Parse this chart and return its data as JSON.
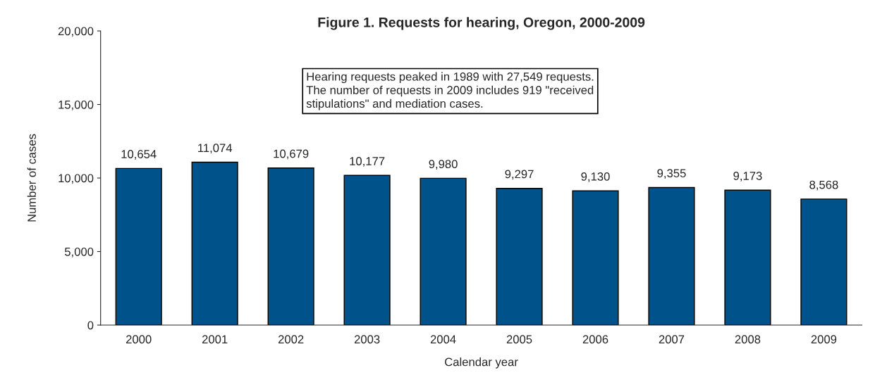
{
  "chart_data": {
    "type": "bar",
    "title": "Figure 1. Requests for hearing, Oregon, 2000-2009",
    "xlabel": "Calendar year",
    "ylabel": "Number of cases",
    "categories": [
      "2000",
      "2001",
      "2002",
      "2003",
      "2004",
      "2005",
      "2006",
      "2007",
      "2008",
      "2009"
    ],
    "values": [
      10654,
      11074,
      10679,
      10177,
      9980,
      9297,
      9130,
      9355,
      9173,
      8568
    ],
    "value_labels": [
      "10,654",
      "11,074",
      "10,679",
      "10,177",
      "9,980",
      "9,297",
      "9,130",
      "9,355",
      "9,173",
      "8,568"
    ],
    "color": "#00538a",
    "ylim": [
      0,
      20000
    ],
    "yticks": [
      {
        "value": 0,
        "label": "0"
      },
      {
        "value": 5000,
        "label": "5,000"
      },
      {
        "value": 10000,
        "label": "10,000"
      },
      {
        "value": 15000,
        "label": "15,000"
      },
      {
        "value": 20000,
        "label": "20,000"
      }
    ],
    "annotations": [
      "Hearing requests peaked in 1989 with 27,549 requests.\nThe number of requests in 2009 includes 919 \"received\nstipulations\" and mediation cases."
    ],
    "grid": false,
    "legend": false
  }
}
